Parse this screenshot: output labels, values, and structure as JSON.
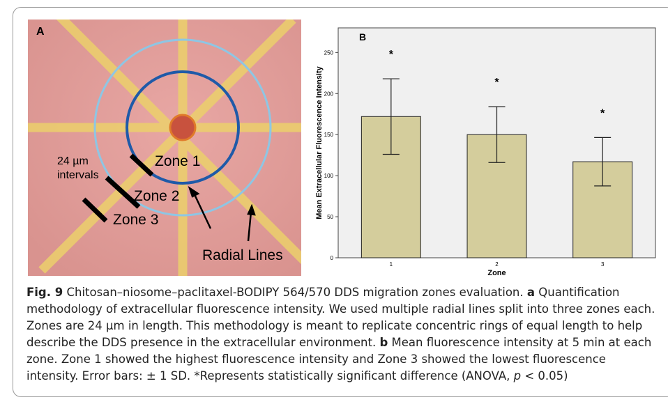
{
  "panel_a": {
    "label": "A",
    "interval_label": [
      "24 µm",
      "intervals"
    ],
    "zones": [
      "Zone 1",
      "Zone 2",
      "Zone 3"
    ],
    "radial_label": "Radial Lines"
  },
  "chart_data": {
    "type": "bar",
    "title": "B",
    "x_label": "Zone",
    "y_label": "Mean Extracellular Fluorescence Intensity",
    "categories": [
      "1",
      "2",
      "3"
    ],
    "values": [
      172,
      150,
      117
    ],
    "errors": [
      46,
      34,
      29.5
    ],
    "annotations": [
      "*",
      "*",
      "*"
    ],
    "color": "#d4cd9c",
    "ylim": [
      0,
      280
    ],
    "yticks": [
      0,
      50,
      100,
      150,
      200,
      250
    ]
  },
  "caption": {
    "label": "Fig. 9",
    "text1": " Chitosan–niosome–paclitaxel-BODIPY 564/570 DDS migration zones evaluation. ",
    "part_a": "a",
    "text2": " Quantification methodology of extracellular fluorescence intensity. We used multiple radial lines split into three zones each. Zones are 24 µm in length. This methodology is meant to replicate concentric rings of equal length to help describe the DDS presence in the extracellular environment. ",
    "part_b": "b",
    "text3": " Mean fluorescence intensity at 5 min at each zone. Zone 1 showed the highest fluorescence intensity and Zone 3 showed the lowest fluorescence intensity. Error bars: ± 1 SD. *Represents statistically significant difference (ANOVA, ",
    "p": "p",
    "text4": " < 0.05)"
  }
}
